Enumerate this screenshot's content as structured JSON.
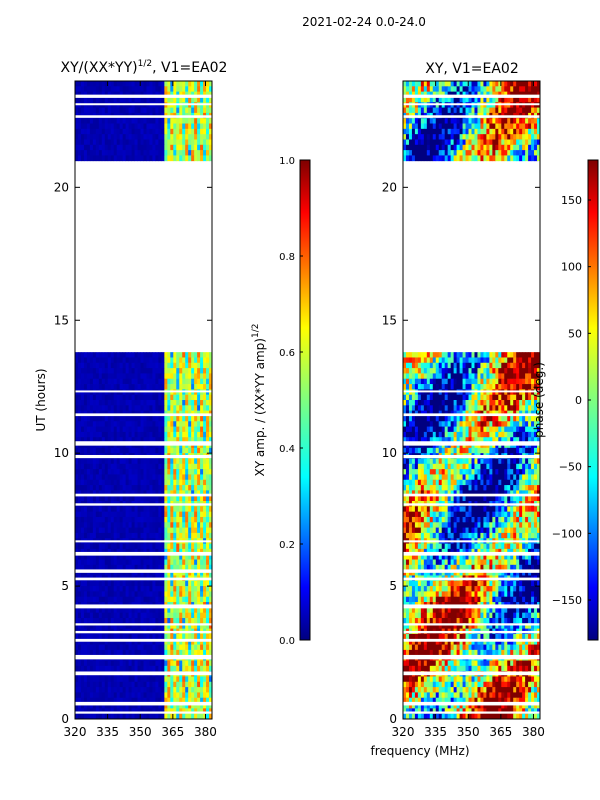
{
  "figure": {
    "suptitle": "2021-02-24 0.0-24.0",
    "xlabel": "frequency (MHz)"
  },
  "colors": {
    "jet": [
      "#00007f",
      "#0000ff",
      "#007fff",
      "#00ffff",
      "#7fff7f",
      "#ffff00",
      "#ff7f00",
      "#ff0000",
      "#7f0000"
    ],
    "gap": "#ffffff",
    "axis": "#000000"
  },
  "chart_data": [
    {
      "type": "heatmap",
      "title_main": "XY/(XX*YY)",
      "title_exp": "1/2",
      "title_tail": ", V1=EA02",
      "xlabel": "",
      "ylabel": "UT (hours)",
      "xlim": [
        320,
        383
      ],
      "ylim": [
        0,
        24
      ],
      "xticks": [
        320,
        335,
        350,
        365,
        380
      ],
      "yticks": [
        0,
        5,
        10,
        15,
        20
      ],
      "data_segments_hours": [
        [
          0.0,
          13.8
        ],
        [
          21.0,
          24.0
        ]
      ],
      "colorbar": {
        "label_main": "XY amp. / (XX*YY amp)",
        "label_exp": "1/2",
        "range": [
          0.0,
          1.0
        ],
        "ticks": [
          "0.0",
          "0.2",
          "0.4",
          "0.6",
          "0.8",
          "1.0"
        ]
      }
    },
    {
      "type": "heatmap",
      "title_main": "XY, V1=EA02",
      "xlabel": "frequency (MHz)",
      "ylabel": "",
      "xlim": [
        320,
        383
      ],
      "ylim": [
        0,
        24
      ],
      "xticks": [
        320,
        335,
        350,
        365,
        380
      ],
      "yticks": [
        0,
        5,
        10,
        15,
        20
      ],
      "data_segments_hours": [
        [
          0.0,
          13.8
        ],
        [
          21.0,
          24.0
        ]
      ],
      "colorbar": {
        "label_main": "phase (deg.)",
        "range": [
          -180,
          180
        ],
        "ticks": [
          "−150",
          "−100",
          "−50",
          "0",
          "50",
          "100",
          "150"
        ]
      }
    }
  ]
}
